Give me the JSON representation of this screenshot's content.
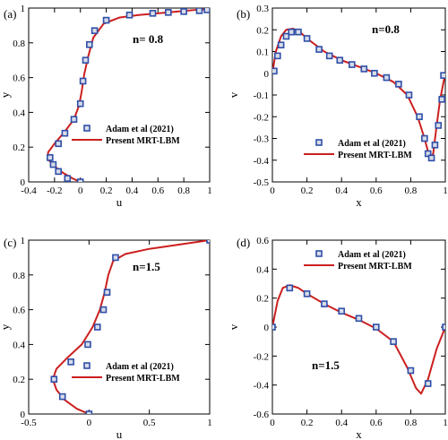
{
  "colors": {
    "model_line": "#cc1f1f",
    "marker": "#2f4fa8",
    "marker_fill": "#d8dce8",
    "axis": "#000000"
  },
  "chart_data": [
    {
      "type": "line",
      "panel": "(a)",
      "annotation": "n= 0.8",
      "xlabel": "u",
      "ylabel": "y",
      "xlim": [
        -0.4,
        1
      ],
      "ylim": [
        0,
        1
      ],
      "xticks": [
        -0.4,
        -0.2,
        0,
        0.2,
        0.4,
        0.6,
        0.8,
        1
      ],
      "xtick_labels": [
        "-0.4",
        "-0.2",
        "0",
        "0.2",
        "0.4",
        "0.6",
        "0.8",
        "1"
      ],
      "yticks": [
        0,
        0.2,
        0.4,
        0.6,
        0.8,
        1
      ],
      "ytick_labels": [
        "0",
        "0.2",
        "0.4",
        "0.6",
        "0.8",
        "1"
      ],
      "legend_placement": "lower-right",
      "series": [
        {
          "name": "Adam et al (2021)",
          "kind": "markers",
          "x": [
            0.0,
            -0.1,
            -0.17,
            -0.21,
            -0.235,
            -0.17,
            -0.12,
            -0.05,
            0.0,
            0.02,
            0.04,
            0.07,
            0.11,
            0.2,
            0.38,
            0.56,
            0.68,
            0.8,
            0.92,
            0.98
          ],
          "y": [
            0.0,
            0.02,
            0.06,
            0.1,
            0.14,
            0.22,
            0.28,
            0.36,
            0.45,
            0.58,
            0.7,
            0.79,
            0.87,
            0.93,
            0.96,
            0.97,
            0.975,
            0.98,
            0.985,
            0.99
          ]
        },
        {
          "name": "Present MRT-LBM",
          "kind": "line",
          "x": [
            0.0,
            -0.06,
            -0.13,
            -0.2,
            -0.25,
            -0.25,
            -0.2,
            -0.12,
            -0.05,
            -0.01,
            0.01,
            0.03,
            0.06,
            0.1,
            0.18,
            0.3,
            0.45,
            0.6,
            0.75,
            0.9,
            1.0
          ],
          "y": [
            0.0,
            0.02,
            0.05,
            0.09,
            0.13,
            0.17,
            0.22,
            0.29,
            0.36,
            0.44,
            0.52,
            0.62,
            0.72,
            0.83,
            0.91,
            0.945,
            0.96,
            0.97,
            0.98,
            0.99,
            0.995
          ]
        }
      ]
    },
    {
      "type": "line",
      "panel": "(b)",
      "annotation": "n=0.8",
      "xlabel": "x",
      "ylabel": "v",
      "xlim": [
        0,
        1
      ],
      "ylim": [
        -0.5,
        0.3
      ],
      "xticks": [
        0,
        0.2,
        0.4,
        0.6,
        0.8,
        1
      ],
      "xtick_labels": [
        "0",
        "0.2",
        "0.4",
        "0.6",
        "0.8",
        "1"
      ],
      "yticks": [
        -0.5,
        -0.4,
        -0.3,
        -0.2,
        -0.1,
        0,
        0.1,
        0.2,
        0.3
      ],
      "ytick_labels": [
        "-0.5",
        "-0.4",
        "-0.3",
        "-0.2",
        "-0.1",
        "0",
        "0.1",
        "0.2",
        "0.3"
      ],
      "legend_placement": "lower-right",
      "series": [
        {
          "name": "Adam et al (2021)",
          "kind": "markers",
          "x": [
            0.01,
            0.03,
            0.05,
            0.08,
            0.11,
            0.15,
            0.2,
            0.27,
            0.33,
            0.39,
            0.46,
            0.53,
            0.59,
            0.66,
            0.73,
            0.79,
            0.85,
            0.88,
            0.9,
            0.92,
            0.94,
            0.96,
            0.98,
            0.99
          ],
          "y": [
            0.01,
            0.08,
            0.13,
            0.17,
            0.19,
            0.19,
            0.16,
            0.11,
            0.08,
            0.06,
            0.04,
            0.02,
            0.0,
            -0.02,
            -0.05,
            -0.1,
            -0.2,
            -0.3,
            -0.37,
            -0.39,
            -0.33,
            -0.24,
            -0.12,
            -0.01
          ]
        },
        {
          "name": "Present MRT-LBM",
          "kind": "line",
          "x": [
            0.0,
            0.02,
            0.05,
            0.08,
            0.12,
            0.16,
            0.2,
            0.3,
            0.4,
            0.5,
            0.6,
            0.7,
            0.78,
            0.84,
            0.88,
            0.91,
            0.93,
            0.95,
            0.97,
            1.0
          ],
          "y": [
            0.0,
            0.1,
            0.17,
            0.2,
            0.205,
            0.19,
            0.16,
            0.1,
            0.06,
            0.03,
            0.0,
            -0.04,
            -0.1,
            -0.2,
            -0.3,
            -0.39,
            -0.37,
            -0.24,
            -0.12,
            0.0
          ]
        }
      ]
    },
    {
      "type": "line",
      "panel": "(c)",
      "annotation": "n=1.5",
      "xlabel": "u",
      "ylabel": "y",
      "xlim": [
        -0.5,
        1
      ],
      "ylim": [
        0,
        1
      ],
      "xticks": [
        -0.5,
        0,
        0.5,
        1
      ],
      "xtick_labels": [
        "-0.5",
        "0",
        "0.5",
        "1"
      ],
      "yticks": [
        0,
        0.2,
        0.4,
        0.6,
        0.8,
        1
      ],
      "ytick_labels": [
        "0",
        "0.2",
        "0.4",
        "0.6",
        "0.8",
        "1"
      ],
      "legend_placement": "lower-right",
      "series": [
        {
          "name": "Adam et al (2021)",
          "kind": "markers",
          "x": [
            0.0,
            -0.22,
            -0.29,
            -0.15,
            -0.01,
            0.07,
            0.12,
            0.15,
            0.22,
            1.0
          ],
          "y": [
            0.0,
            0.1,
            0.2,
            0.3,
            0.4,
            0.5,
            0.6,
            0.7,
            0.9,
            1.0
          ]
        },
        {
          "name": "Present MRT-LBM",
          "kind": "line",
          "x": [
            0.0,
            -0.1,
            -0.2,
            -0.27,
            -0.3,
            -0.27,
            -0.17,
            -0.06,
            0.03,
            0.09,
            0.13,
            0.16,
            0.2,
            0.3,
            0.5,
            0.75,
            1.0
          ],
          "y": [
            0.0,
            0.03,
            0.08,
            0.14,
            0.2,
            0.26,
            0.33,
            0.4,
            0.5,
            0.6,
            0.7,
            0.8,
            0.88,
            0.92,
            0.95,
            0.975,
            1.0
          ]
        }
      ]
    },
    {
      "type": "line",
      "panel": "(d)",
      "annotation": "n=1.5",
      "xlabel": "x",
      "ylabel": "v",
      "xlim": [
        0,
        1
      ],
      "ylim": [
        -0.6,
        0.6
      ],
      "xticks": [
        0,
        0.2,
        0.4,
        0.6,
        0.8,
        1
      ],
      "xtick_labels": [
        "0",
        "0.2",
        "0.4",
        "0.6",
        "0.8",
        "1"
      ],
      "yticks": [
        -0.6,
        -0.4,
        -0.2,
        0,
        0.2,
        0.4,
        0.6
      ],
      "ytick_labels": [
        "-0.6",
        "-0.4",
        "-0.2",
        "0",
        "0.2",
        "0.4",
        "0.6"
      ],
      "legend_placement": "top-right",
      "series": [
        {
          "name": "Adam et al (2021)",
          "kind": "markers",
          "x": [
            0.0,
            0.1,
            0.2,
            0.3,
            0.4,
            0.5,
            0.6,
            0.7,
            0.8,
            0.9,
            1.0
          ],
          "y": [
            0.0,
            0.27,
            0.23,
            0.16,
            0.11,
            0.06,
            0.0,
            -0.1,
            -0.3,
            -0.39,
            0.0
          ]
        },
        {
          "name": "Present MRT-LBM",
          "kind": "line",
          "x": [
            0.0,
            0.03,
            0.06,
            0.1,
            0.15,
            0.2,
            0.3,
            0.4,
            0.5,
            0.6,
            0.7,
            0.78,
            0.83,
            0.86,
            0.9,
            0.95,
            1.0
          ],
          "y": [
            0.0,
            0.18,
            0.27,
            0.29,
            0.27,
            0.23,
            0.16,
            0.1,
            0.05,
            -0.01,
            -0.1,
            -0.28,
            -0.42,
            -0.46,
            -0.36,
            -0.15,
            0.0
          ]
        }
      ]
    }
  ]
}
